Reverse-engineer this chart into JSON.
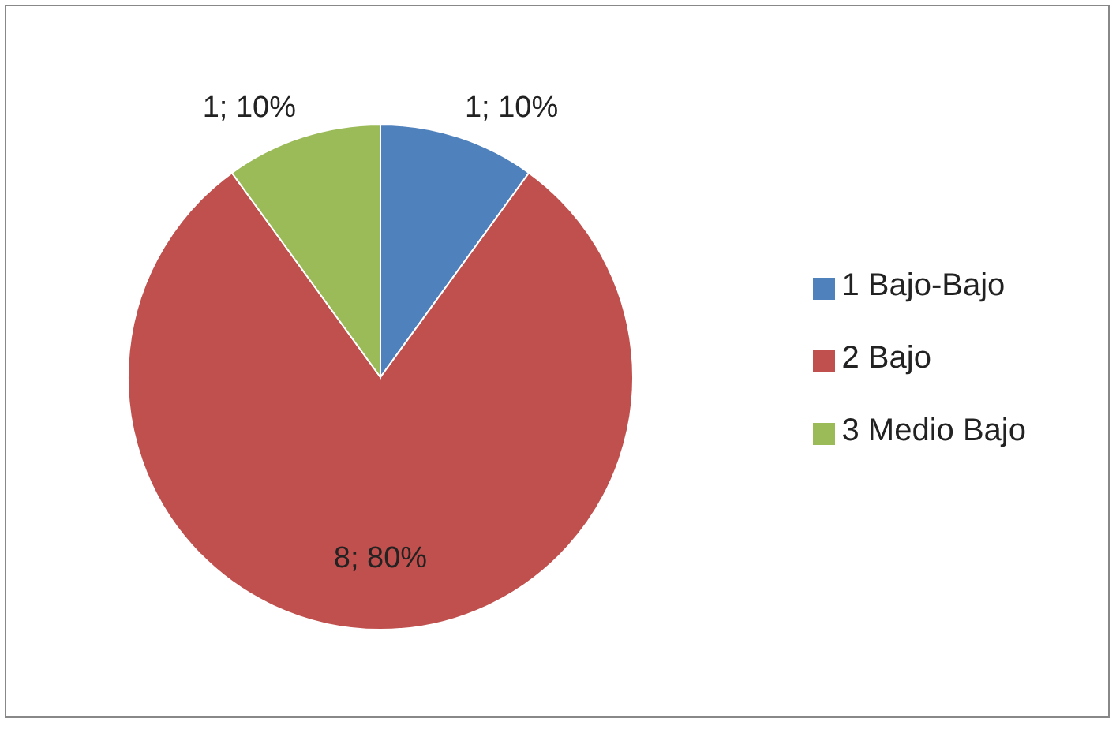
{
  "chart_data": {
    "type": "pie",
    "categories": [
      "1 Bajo-Bajo",
      "2 Bajo",
      "3 Medio Bajo"
    ],
    "values": [
      1,
      8,
      1
    ],
    "colors": [
      "#4f81bd",
      "#c0504d",
      "#9bbb59"
    ],
    "value_labels": [
      "1; 10%",
      "8; 80%",
      "1; 10%"
    ],
    "legend": "right"
  }
}
